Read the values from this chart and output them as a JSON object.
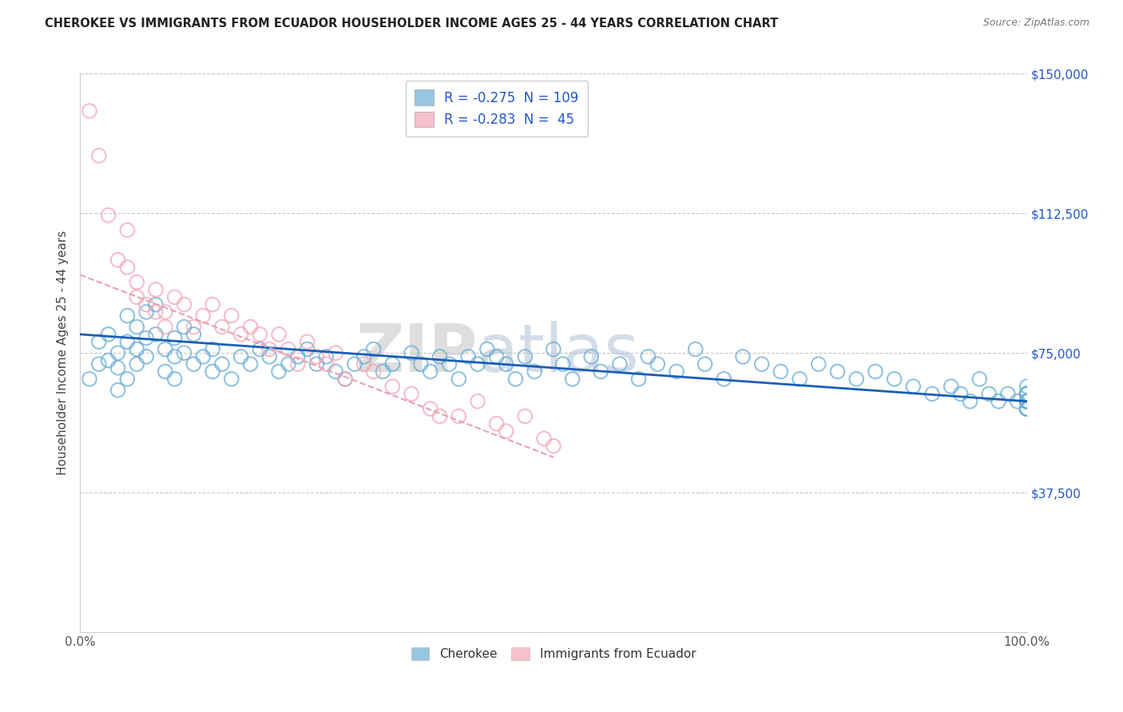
{
  "title": "CHEROKEE VS IMMIGRANTS FROM ECUADOR HOUSEHOLDER INCOME AGES 25 - 44 YEARS CORRELATION CHART",
  "source": "Source: ZipAtlas.com",
  "ylabel": "Householder Income Ages 25 - 44 years",
  "xlim": [
    0,
    100
  ],
  "ylim": [
    0,
    150000
  ],
  "yticks": [
    0,
    37500,
    75000,
    112500,
    150000
  ],
  "xtick_labels": [
    "0.0%",
    "100.0%"
  ],
  "legend_r1": "R = -0.275",
  "legend_n1": "N = 109",
  "legend_r2": "R = -0.283",
  "legend_n2": "N =  45",
  "cherokee_color": "#6baed6",
  "ecuador_color": "#f4a6b8",
  "trend_blue": "#1a5eb8",
  "trend_pink": "#e8a0b0",
  "background": "#ffffff",
  "grid_color": "#b0b0b0",
  "watermark_zip": "ZIP",
  "watermark_atlas": "atlas",
  "cherokee_label": "Cherokee",
  "ecuador_label": "Immigrants from Ecuador",
  "cherokee_x": [
    1,
    2,
    2,
    3,
    3,
    4,
    4,
    4,
    5,
    5,
    5,
    6,
    6,
    6,
    7,
    7,
    7,
    8,
    8,
    9,
    9,
    10,
    10,
    10,
    11,
    11,
    12,
    12,
    13,
    14,
    14,
    15,
    16,
    17,
    18,
    19,
    20,
    21,
    22,
    23,
    24,
    25,
    26,
    27,
    28,
    29,
    30,
    31,
    32,
    33,
    35,
    36,
    37,
    38,
    39,
    40,
    41,
    42,
    43,
    44,
    45,
    46,
    47,
    48,
    50,
    51,
    52,
    54,
    55,
    57,
    59,
    60,
    61,
    63,
    65,
    66,
    68,
    70,
    72,
    74,
    76,
    78,
    80,
    82,
    84,
    86,
    88,
    90,
    92,
    93,
    94,
    95,
    96,
    97,
    98,
    99,
    100,
    100,
    100,
    100,
    100,
    100,
    100,
    100,
    100,
    100,
    100,
    100,
    100
  ],
  "cherokee_y": [
    68000,
    78000,
    72000,
    80000,
    73000,
    75000,
    71000,
    65000,
    85000,
    78000,
    68000,
    82000,
    76000,
    72000,
    86000,
    79000,
    74000,
    88000,
    80000,
    76000,
    70000,
    79000,
    74000,
    68000,
    82000,
    75000,
    80000,
    72000,
    74000,
    76000,
    70000,
    72000,
    68000,
    74000,
    72000,
    76000,
    74000,
    70000,
    72000,
    74000,
    76000,
    72000,
    74000,
    70000,
    68000,
    72000,
    74000,
    76000,
    70000,
    72000,
    75000,
    72000,
    70000,
    74000,
    72000,
    68000,
    74000,
    72000,
    76000,
    74000,
    72000,
    68000,
    74000,
    70000,
    76000,
    72000,
    68000,
    74000,
    70000,
    72000,
    68000,
    74000,
    72000,
    70000,
    76000,
    72000,
    68000,
    74000,
    72000,
    70000,
    68000,
    72000,
    70000,
    68000,
    70000,
    68000,
    66000,
    64000,
    66000,
    64000,
    62000,
    68000,
    64000,
    62000,
    64000,
    62000,
    60000,
    64000,
    62000,
    66000,
    64000,
    60000,
    62000,
    64000,
    62000,
    60000,
    64000,
    62000,
    60000
  ],
  "ecuador_x": [
    1,
    2,
    3,
    4,
    5,
    5,
    6,
    6,
    7,
    8,
    8,
    9,
    9,
    10,
    11,
    12,
    13,
    14,
    15,
    16,
    17,
    18,
    19,
    20,
    21,
    22,
    23,
    24,
    25,
    26,
    27,
    28,
    30,
    31,
    33,
    35,
    37,
    38,
    40,
    42,
    44,
    45,
    47,
    49,
    50
  ],
  "ecuador_y": [
    140000,
    128000,
    112000,
    100000,
    108000,
    98000,
    94000,
    90000,
    88000,
    92000,
    86000,
    82000,
    86000,
    90000,
    88000,
    82000,
    85000,
    88000,
    82000,
    85000,
    80000,
    82000,
    80000,
    76000,
    80000,
    76000,
    72000,
    78000,
    74000,
    72000,
    75000,
    68000,
    72000,
    70000,
    66000,
    64000,
    60000,
    58000,
    58000,
    62000,
    56000,
    54000,
    58000,
    52000,
    50000
  ],
  "cherokee_trend_x": [
    0,
    100
  ],
  "cherokee_trend_y": [
    80000,
    62000
  ],
  "ecuador_trend_x": [
    0,
    50
  ],
  "ecuador_trend_y": [
    96000,
    47000
  ]
}
